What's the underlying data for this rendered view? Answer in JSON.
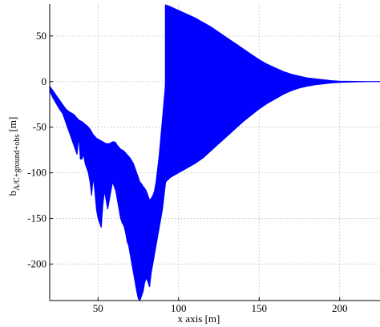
{
  "chart_data": {
    "type": "area",
    "title": "",
    "xlabel": "x axis [m]",
    "ylabel_main": "b",
    "ylabel_subscript": "A/C+ground+obs",
    "ylabel_unit": " [m]",
    "xlim": [
      20,
      225
    ],
    "ylim": [
      -240,
      85
    ],
    "xticks": [
      50,
      100,
      150,
      200
    ],
    "yticks": [
      -200,
      -150,
      -100,
      -50,
      0,
      50
    ],
    "xtick_labels": [
      "50",
      "100",
      "150",
      "200"
    ],
    "ytick_labels": [
      "-200",
      "-150",
      "-100",
      "-50",
      "0",
      "50"
    ],
    "grid": true,
    "color": "#0000ff",
    "series": [
      {
        "x": [
          20,
          22,
          24,
          26,
          28,
          30,
          32,
          34,
          35,
          36,
          37,
          38,
          39,
          40,
          41,
          42,
          43,
          44,
          45,
          46,
          47,
          48,
          49,
          50,
          51,
          52,
          53,
          54,
          55,
          56,
          57,
          58,
          59,
          60,
          61,
          62,
          63,
          64,
          65,
          66,
          67,
          68,
          69,
          70,
          71,
          72,
          73,
          74,
          75,
          76,
          77,
          78,
          79,
          80,
          81,
          82,
          83,
          84,
          85,
          86,
          87,
          88,
          89,
          90,
          91,
          92
        ],
        "upper": [
          -5,
          -10,
          -15,
          -20,
          -25,
          -30,
          -33,
          -35,
          -36,
          -38,
          -40,
          -42,
          -43,
          -44,
          -45,
          -47,
          -48,
          -50,
          -52,
          -55,
          -58,
          -60,
          -62,
          -63,
          -64,
          -65,
          -66,
          -67,
          -68,
          -68,
          -68,
          -67,
          -66,
          -66,
          -67,
          -70,
          -72,
          -74,
          -75,
          -76,
          -78,
          -80,
          -82,
          -84,
          -87,
          -90,
          -95,
          -100,
          -105,
          -110,
          -112,
          -115,
          -117,
          -120,
          -125,
          -130,
          -128,
          -125,
          -120,
          -110,
          -95,
          -80,
          -60,
          -40,
          -20,
          0
        ],
        "lower": [
          -10,
          -18,
          -24,
          -30,
          -35,
          -45,
          -55,
          -65,
          -70,
          -75,
          -80,
          -60,
          -85,
          -85,
          -80,
          -90,
          -95,
          -100,
          -110,
          -125,
          -105,
          -120,
          -140,
          -150,
          -155,
          -160,
          -135,
          -120,
          -130,
          -140,
          -130,
          -120,
          -110,
          -115,
          -120,
          -130,
          -140,
          -150,
          -155,
          -158,
          -165,
          -175,
          -180,
          -190,
          -200,
          -210,
          -220,
          -230,
          -238,
          -240,
          -235,
          -230,
          -220,
          -215,
          -220,
          -225,
          -210,
          -200,
          -190,
          -180,
          -170,
          -160,
          -150,
          -140,
          -125,
          -110
        ]
      },
      {
        "x": [
          92,
          95,
          100,
          105,
          110,
          115,
          120,
          125,
          130,
          135,
          140,
          145,
          150,
          155,
          160,
          165,
          170,
          175,
          180,
          185,
          190,
          195,
          200,
          205,
          210,
          215,
          220,
          225
        ],
        "upper": [
          84,
          82,
          78,
          74,
          70,
          65,
          60,
          54,
          48,
          42,
          36,
          30,
          24,
          19,
          15,
          11,
          8,
          6,
          4,
          3,
          2,
          1,
          0.5,
          0.3,
          0.2,
          0.1,
          0.1,
          0.1
        ],
        "lower": [
          -110,
          -105,
          -100,
          -95,
          -90,
          -84,
          -76,
          -68,
          -60,
          -52,
          -44,
          -37,
          -30,
          -24,
          -19,
          -14,
          -10,
          -7,
          -5,
          -3.5,
          -2.5,
          -1.5,
          -1,
          -0.6,
          -0.4,
          -0.2,
          -0.1,
          -0.1
        ]
      }
    ]
  }
}
